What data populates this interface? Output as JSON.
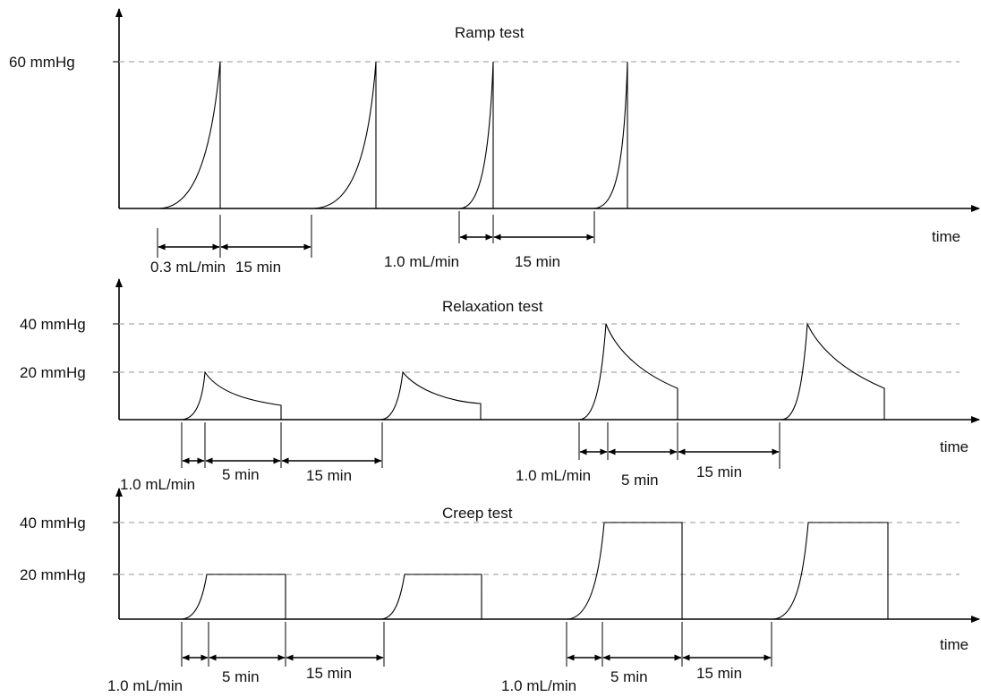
{
  "panels": [
    {
      "title": "Ramp test",
      "x_label": "time",
      "y_labels": [
        "60 mmHg"
      ],
      "interval_labels": [
        "0.3 mL/min",
        "15 min",
        "1.0 mL/min",
        "15 min"
      ]
    },
    {
      "title": "Relaxation test",
      "x_label": "time",
      "y_labels": [
        "40 mmHg",
        "20 mmHg"
      ],
      "interval_labels": [
        "1.0 mL/min",
        "5 min",
        "15 min",
        "1.0 mL/min",
        "5 min",
        "15 min"
      ]
    },
    {
      "title": "Creep test",
      "x_label": "time",
      "y_labels": [
        "40 mmHg",
        "20 mmHg"
      ],
      "interval_labels": [
        "1.0 mL/min",
        "5 min",
        "15 min",
        "1.0 mL/min",
        "5 min",
        "15 min"
      ]
    }
  ],
  "line_color": "#000000",
  "reference_line_color": "#aaaaaa"
}
